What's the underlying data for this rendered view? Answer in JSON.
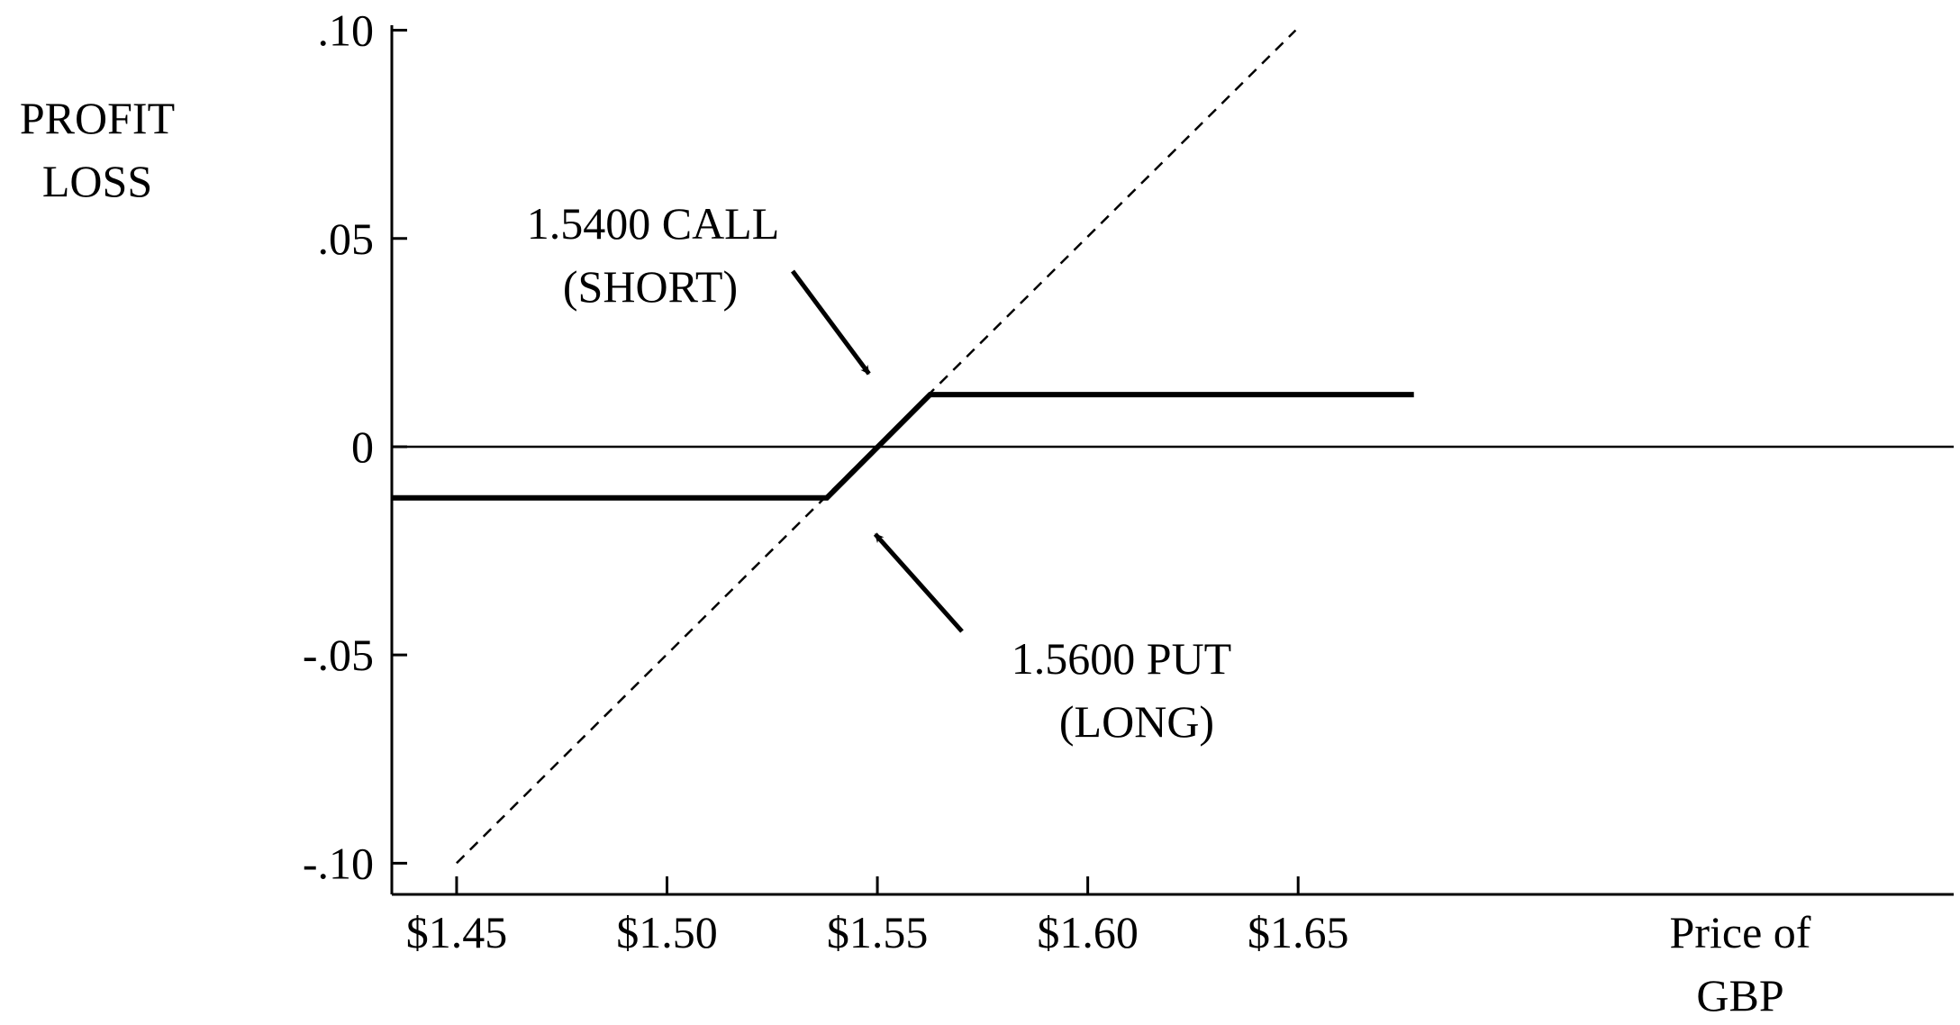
{
  "chart_data": {
    "type": "line",
    "title": "",
    "ylabel_lines": [
      "PROFIT",
      "LOSS"
    ],
    "xlabel_lines": [
      "Price of",
      "GBP"
    ],
    "xlim": [
      1.4346,
      1.8058
    ],
    "ylim": [
      -0.1075,
      0.1025
    ],
    "x_ticks": [
      1.45,
      1.5,
      1.55,
      1.6,
      1.65
    ],
    "x_tick_labels": [
      "$1.45",
      "$1.50",
      "$1.55",
      "$1.60",
      "$1.65"
    ],
    "y_ticks": [
      0.1,
      0.05,
      0,
      -0.05,
      -0.1
    ],
    "y_tick_labels": [
      ".10",
      ".05",
      "0",
      "-.05",
      "-.10"
    ],
    "grid": false,
    "series": [
      {
        "style": "dashed-thin",
        "points": [
          [
            1.45,
            -0.1
          ],
          [
            1.6494,
            0.1
          ]
        ]
      },
      {
        "style": "solid-thick",
        "points": [
          [
            1.4346,
            -0.0123
          ],
          [
            1.538,
            -0.0123
          ],
          [
            1.5625,
            0.0125
          ],
          [
            1.6775,
            0.0125
          ]
        ]
      }
    ],
    "annotations": [
      {
        "lines": [
          "1.5400 CALL",
          "(SHORT)"
        ],
        "arrow_to": [
          1.548,
          0.0175
        ]
      },
      {
        "lines": [
          "1.5600 PUT",
          "(LONG)"
        ],
        "arrow_to": [
          1.5495,
          -0.021
        ]
      }
    ]
  }
}
